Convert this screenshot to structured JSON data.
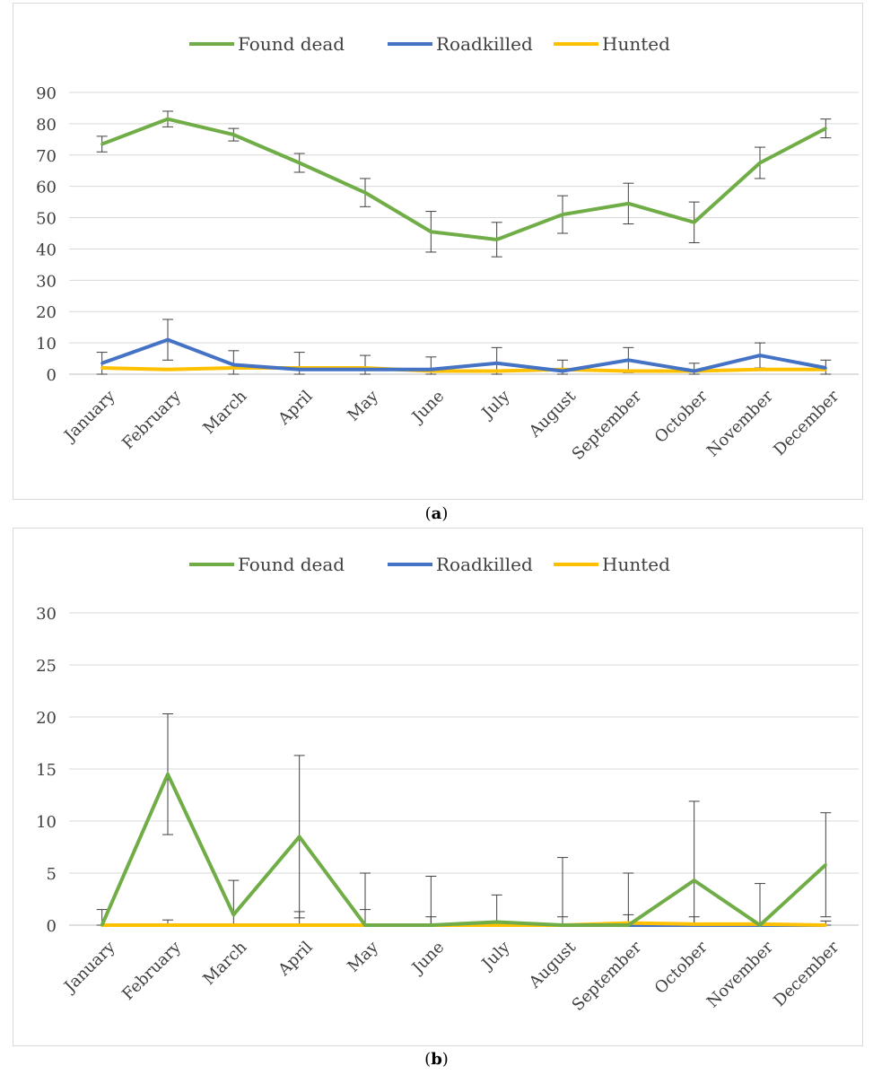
{
  "chart_data": [
    {
      "panel_label": "a",
      "type": "line",
      "categories": [
        "January",
        "February",
        "March",
        "April",
        "May",
        "June",
        "July",
        "August",
        "September",
        "October",
        "November",
        "December"
      ],
      "ylim": [
        0,
        90
      ],
      "yticks": [
        0,
        10,
        20,
        30,
        40,
        50,
        60,
        70,
        80,
        90
      ],
      "grid": true,
      "legend": "top",
      "error_bars": true,
      "series": [
        {
          "name": "Found dead",
          "color": "#70ad47",
          "values": [
            73.5,
            81.5,
            76.5,
            67.5,
            58,
            45.5,
            43,
            51,
            54.5,
            48.5,
            67.5,
            78.5
          ],
          "err": [
            2.5,
            2.5,
            2,
            3,
            4.5,
            6.5,
            5.5,
            6,
            6.5,
            6.5,
            5,
            3
          ]
        },
        {
          "name": "Roadkilled",
          "color": "#4472c4",
          "values": [
            3.5,
            11,
            3,
            1.5,
            1.5,
            1.5,
            3.5,
            1,
            4.5,
            1,
            6,
            2
          ],
          "err": [
            3.5,
            6.5,
            4.5,
            5.5,
            4.5,
            4,
            5,
            3.5,
            4,
            2.5,
            4,
            2.5
          ]
        },
        {
          "name": "Hunted",
          "color": "#ffc000",
          "values": [
            2,
            1.5,
            2,
            2,
            2,
            1,
            1,
            1.5,
            1,
            1,
            1.5,
            1.5
          ],
          "err": [
            0,
            0,
            0,
            0,
            0,
            0,
            0,
            0,
            0,
            0,
            0,
            0
          ]
        }
      ]
    },
    {
      "panel_label": "b",
      "type": "line",
      "categories": [
        "January",
        "February",
        "March",
        "April",
        "May",
        "June",
        "July",
        "August",
        "September",
        "October",
        "November",
        "December"
      ],
      "ylim": [
        0,
        30
      ],
      "yticks": [
        0,
        5,
        10,
        15,
        20,
        25,
        30
      ],
      "grid": true,
      "legend": "top",
      "error_bars": true,
      "series": [
        {
          "name": "Found dead",
          "color": "#70ad47",
          "values": [
            0,
            14.5,
            1,
            8.5,
            0,
            0,
            0.3,
            0,
            0,
            4.3,
            0,
            5.8
          ],
          "err": [
            1.5,
            5.8,
            3.3,
            7.8,
            5,
            4.7,
            2.6,
            6.5,
            5,
            7.6,
            4,
            5
          ]
        },
        {
          "name": "Roadkilled",
          "color": "#4472c4",
          "values": [
            0,
            0,
            0,
            0,
            0,
            0,
            0,
            0,
            0,
            0,
            0,
            0
          ],
          "err": [
            0,
            0,
            0,
            0,
            0,
            0,
            0,
            0,
            0,
            0,
            0,
            0
          ]
        },
        {
          "name": "Hunted",
          "color": "#ffc000",
          "values": [
            0,
            0,
            0,
            0,
            0,
            0,
            0,
            0,
            0.2,
            0.1,
            0.1,
            0
          ],
          "err": [
            0,
            0.5,
            0,
            1.3,
            1.5,
            0.8,
            0,
            0.8,
            0.8,
            0.7,
            0,
            0.4
          ]
        }
      ]
    }
  ],
  "captions": {
    "a": "a",
    "b": "b"
  }
}
